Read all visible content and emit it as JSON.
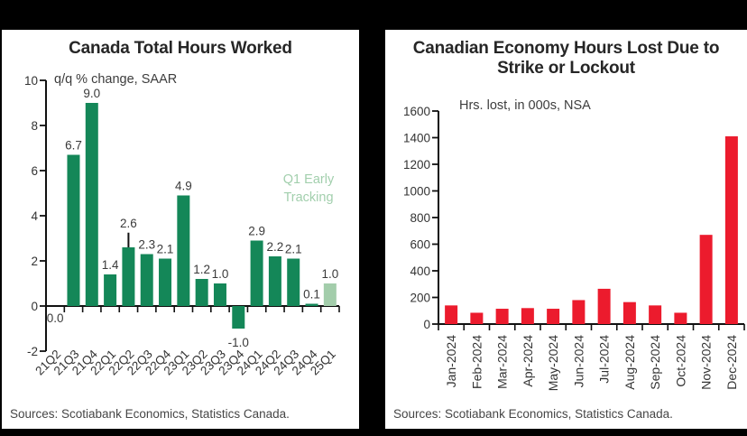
{
  "chart_data": [
    {
      "type": "bar",
      "title": "Canada Total Hours Worked",
      "title_lines": [
        "Canada Total Hours Worked"
      ],
      "subtitle": "q/q % change, SAAR",
      "xlabel": "",
      "ylabel": "q/q % change, SAAR",
      "categories": [
        "21Q2",
        "21Q3",
        "21Q4",
        "22Q1",
        "22Q2",
        "22Q3",
        "22Q4",
        "23Q1",
        "23Q2",
        "23Q3",
        "23Q4",
        "24Q1",
        "24Q2",
        "24Q3",
        "24Q4",
        "25Q1"
      ],
      "values": [
        0.0,
        6.7,
        9.0,
        1.4,
        2.6,
        2.3,
        2.1,
        4.9,
        1.2,
        1.0,
        -1.0,
        2.9,
        2.2,
        2.1,
        0.1,
        1.0
      ],
      "value_labels": [
        "0.0",
        "6.7",
        "9.0",
        "1.4",
        "2.6",
        "2.3",
        "2.1",
        "4.9",
        "1.2",
        "1.0",
        "-1.0",
        "2.9",
        "2.2",
        "2.1",
        "0.1",
        "1.0"
      ],
      "ylim": [
        -2,
        10
      ],
      "yticks": [
        -2,
        0,
        2,
        4,
        6,
        8,
        10
      ],
      "grid": false,
      "legend": "none",
      "highlight_index": 15,
      "whisker": {
        "index": 4,
        "from": 2.6,
        "to": 3.25
      },
      "annotation": {
        "line1": "Q1 Early",
        "line2": "Tracking",
        "color": "#a2cfad"
      },
      "colors": {
        "bar": "#148758",
        "highlight": "#a3cdab"
      },
      "sources": "Sources: Scotiabank Economics, Statistics Canada."
    },
    {
      "type": "bar",
      "title": "Canadian Economy Hours Lost Due to Strike or Lockout",
      "title_lines": [
        "Canadian Economy Hours Lost Due to",
        "Strike or Lockout"
      ],
      "subtitle": "Hrs. lost, in 000s, NSA",
      "xlabel": "",
      "ylabel": "Hrs. lost, in 000s, NSA",
      "categories": [
        "Jan-2024",
        "Feb-2024",
        "Mar-2024",
        "Apr-2024",
        "May-2024",
        "Jun-2024",
        "Jul-2024",
        "Aug-2024",
        "Sep-2024",
        "Oct-2024",
        "Nov-2024",
        "Dec-2024"
      ],
      "values": [
        140,
        85,
        115,
        120,
        115,
        180,
        265,
        165,
        140,
        85,
        670,
        1410
      ],
      "ylim": [
        0,
        1600
      ],
      "yticks": [
        0,
        200,
        400,
        600,
        800,
        1000,
        1200,
        1400,
        1600
      ],
      "grid": false,
      "legend": "none",
      "colors": {
        "bar": "#ec1b2d"
      },
      "sources": "Sources: Scotiabank Economics, Statistics Canada."
    }
  ]
}
